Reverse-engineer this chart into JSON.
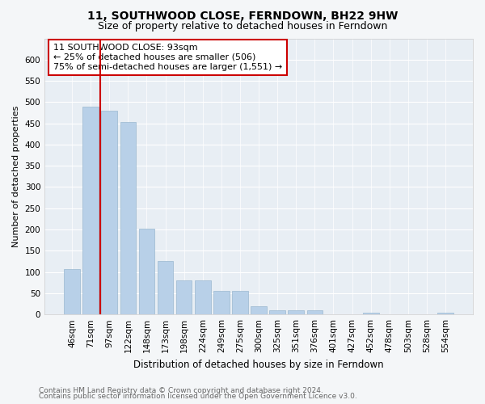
{
  "title": "11, SOUTHWOOD CLOSE, FERNDOWN, BH22 9HW",
  "subtitle": "Size of property relative to detached houses in Ferndown",
  "xlabel": "Distribution of detached houses by size in Ferndown",
  "ylabel": "Number of detached properties",
  "categories": [
    "46sqm",
    "71sqm",
    "97sqm",
    "122sqm",
    "148sqm",
    "173sqm",
    "198sqm",
    "224sqm",
    "249sqm",
    "275sqm",
    "300sqm",
    "325sqm",
    "351sqm",
    "376sqm",
    "401sqm",
    "427sqm",
    "452sqm",
    "478sqm",
    "503sqm",
    "528sqm",
    "554sqm"
  ],
  "values": [
    107,
    490,
    480,
    453,
    202,
    125,
    80,
    80,
    55,
    55,
    20,
    10,
    10,
    10,
    0,
    0,
    5,
    0,
    0,
    0,
    5
  ],
  "bar_color": "#b8d0e8",
  "bar_edge_color": "#9ab8d0",
  "vline_x": 1.5,
  "vline_color": "#cc0000",
  "annotation_text": "11 SOUTHWOOD CLOSE: 93sqm\n← 25% of detached houses are smaller (506)\n75% of semi-detached houses are larger (1,551) →",
  "annotation_box_color": "white",
  "annotation_box_edgecolor": "#cc0000",
  "ylim": [
    0,
    650
  ],
  "yticks": [
    0,
    50,
    100,
    150,
    200,
    250,
    300,
    350,
    400,
    450,
    500,
    550,
    600
  ],
  "footer_line1": "Contains HM Land Registry data © Crown copyright and database right 2024.",
  "footer_line2": "Contains public sector information licensed under the Open Government Licence v3.0.",
  "bg_color": "#f4f6f8",
  "plot_bg_color": "#e8eef4",
  "grid_color": "#ffffff",
  "title_fontsize": 10,
  "subtitle_fontsize": 9,
  "xlabel_fontsize": 8.5,
  "ylabel_fontsize": 8,
  "tick_fontsize": 7.5,
  "annotation_fontsize": 8,
  "footer_fontsize": 6.5
}
